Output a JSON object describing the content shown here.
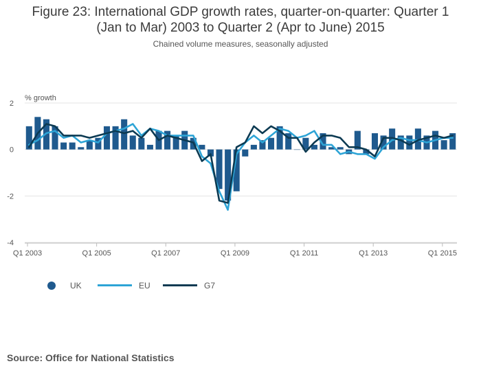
{
  "header": {
    "title_line1": "Figure 23: International GDP growth rates, quarter-on-quarter: Quarter 1",
    "title_line2": "(Jan to Mar) 2003 to Quarter 2 (Apr to June) 2015",
    "subtitle": "Chained volume measures, seasonally adjusted"
  },
  "footer": {
    "source": "Source: Office for National Statistics"
  },
  "colors": {
    "uk": "#1f5a8e",
    "eu": "#2da4d6",
    "g7": "#0c3a52",
    "grid": "#e3e3e3",
    "axis": "#bbbbbb"
  },
  "chart_data": {
    "type": "bar",
    "ylabel": "% growth",
    "ylim": [
      -4,
      2
    ],
    "yticks": [
      -4,
      -2,
      0,
      2
    ],
    "x_tick_labels": [
      {
        "index": 0,
        "label": "Q1 2003"
      },
      {
        "index": 8,
        "label": "Q1 2005"
      },
      {
        "index": 16,
        "label": "Q1 2007"
      },
      {
        "index": 24,
        "label": "Q1 2009"
      },
      {
        "index": 32,
        "label": "Q1 2011"
      },
      {
        "index": 40,
        "label": "Q1 2013"
      },
      {
        "index": 48,
        "label": "Q1 2015"
      }
    ],
    "n_quarters": 50,
    "legend_position": "bottom-left",
    "series": [
      {
        "name": "UK",
        "kind": "bar",
        "color": "#1f5a8e",
        "values": [
          1.0,
          1.4,
          1.3,
          1.0,
          0.3,
          0.3,
          0.1,
          0.4,
          0.5,
          1.0,
          1.0,
          1.3,
          0.6,
          0.5,
          0.2,
          0.8,
          0.8,
          0.6,
          0.8,
          0.5,
          0.2,
          -0.3,
          -1.7,
          -2.2,
          -1.8,
          -0.3,
          0.2,
          0.4,
          0.5,
          1.0,
          0.7,
          0.0,
          0.5,
          0.2,
          0.7,
          0.1,
          0.1,
          -0.2,
          0.8,
          -0.2,
          0.7,
          0.6,
          0.9,
          0.6,
          0.6,
          0.9,
          0.6,
          0.8,
          0.4,
          0.7
        ]
      },
      {
        "name": "EU",
        "kind": "line",
        "color": "#2da4d6",
        "values": [
          0.2,
          0.4,
          0.7,
          0.8,
          0.5,
          0.6,
          0.3,
          0.4,
          0.3,
          0.7,
          0.8,
          0.9,
          1.1,
          0.6,
          0.9,
          0.8,
          0.6,
          0.6,
          0.6,
          0.6,
          -0.3,
          -0.6,
          -1.8,
          -2.6,
          -0.2,
          0.3,
          0.6,
          0.3,
          0.6,
          0.9,
          0.8,
          0.5,
          0.6,
          0.8,
          0.2,
          0.2,
          -0.2,
          -0.1,
          -0.2,
          -0.2,
          -0.4,
          0.1,
          0.4,
          0.5,
          0.4,
          0.4,
          0.3,
          0.4,
          0.5,
          0.5
        ]
      },
      {
        "name": "G7",
        "kind": "line",
        "color": "#0c3a52",
        "values": [
          0.1,
          0.7,
          1.1,
          1.0,
          0.6,
          0.6,
          0.6,
          0.5,
          0.6,
          0.7,
          0.8,
          0.7,
          0.8,
          0.5,
          0.9,
          0.4,
          0.6,
          0.5,
          0.4,
          0.3,
          -0.5,
          -0.2,
          -2.2,
          -2.3,
          0.1,
          0.3,
          1.0,
          0.7,
          1.0,
          0.8,
          0.5,
          0.5,
          -0.1,
          0.3,
          0.6,
          0.6,
          0.5,
          0.1,
          0.1,
          0.0,
          -0.3,
          0.5,
          0.5,
          0.4,
          0.2,
          0.4,
          0.5,
          0.6,
          0.5,
          0.6
        ]
      }
    ]
  }
}
